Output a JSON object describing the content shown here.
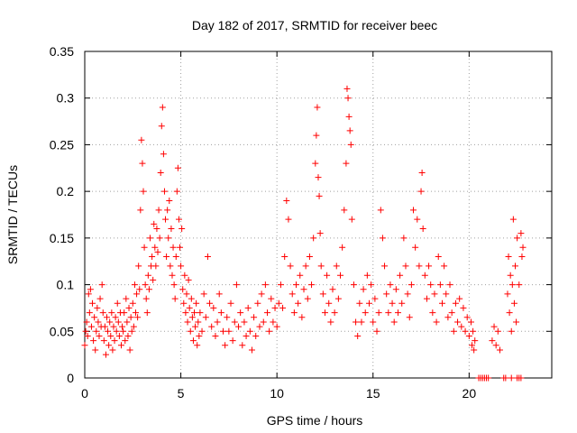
{
  "chart_data": {
    "type": "scatter",
    "title": "Day 182 of 2017, SRMTID for receiver beec",
    "xlabel": "GPS time / hours",
    "ylabel": "SRMTID / TECUs",
    "xlim": [
      0,
      24.3
    ],
    "ylim": [
      0,
      0.35
    ],
    "x_ticks": [
      0,
      5,
      10,
      15,
      20
    ],
    "x_tick_labels": [
      "0",
      "5",
      "10",
      "15",
      "20"
    ],
    "y_ticks": [
      0,
      0.05,
      0.1,
      0.15,
      0.2,
      0.25,
      0.3,
      0.35
    ],
    "y_tick_labels": [
      "0",
      "0.05",
      "0.1",
      "0.15",
      "0.2",
      "0.25",
      "0.3",
      "0.35"
    ],
    "grid": true,
    "marker": "+",
    "series": [
      {
        "name": "SRMTID",
        "color": "#ff0000",
        "points": [
          [
            0.0,
            0.035
          ],
          [
            0.05,
            0.05
          ],
          [
            0.1,
            0.06
          ],
          [
            0.15,
            0.045
          ],
          [
            0.2,
            0.09
          ],
          [
            0.25,
            0.07
          ],
          [
            0.3,
            0.095
          ],
          [
            0.35,
            0.055
          ],
          [
            0.4,
            0.08
          ],
          [
            0.45,
            0.04
          ],
          [
            0.5,
            0.065
          ],
          [
            0.55,
            0.03
          ],
          [
            0.6,
            0.05
          ],
          [
            0.65,
            0.075
          ],
          [
            0.7,
            0.06
          ],
          [
            0.75,
            0.045
          ],
          [
            0.8,
            0.085
          ],
          [
            0.85,
            0.055
          ],
          [
            0.9,
            0.1
          ],
          [
            0.95,
            0.07
          ],
          [
            1.0,
            0.04
          ],
          [
            1.05,
            0.055
          ],
          [
            1.1,
            0.025
          ],
          [
            1.15,
            0.065
          ],
          [
            1.2,
            0.05
          ],
          [
            1.25,
            0.035
          ],
          [
            1.3,
            0.06
          ],
          [
            1.35,
            0.045
          ],
          [
            1.4,
            0.07
          ],
          [
            1.45,
            0.03
          ],
          [
            1.5,
            0.055
          ],
          [
            1.55,
            0.04
          ],
          [
            1.6,
            0.065
          ],
          [
            1.65,
            0.05
          ],
          [
            1.7,
            0.08
          ],
          [
            1.75,
            0.06
          ],
          [
            1.8,
            0.045
          ],
          [
            1.85,
            0.07
          ],
          [
            1.9,
            0.035
          ],
          [
            1.95,
            0.055
          ],
          [
            2.0,
            0.05
          ],
          [
            2.05,
            0.07
          ],
          [
            2.1,
            0.04
          ],
          [
            2.15,
            0.085
          ],
          [
            2.2,
            0.06
          ],
          [
            2.25,
            0.045
          ],
          [
            2.3,
            0.075
          ],
          [
            2.35,
            0.03
          ],
          [
            2.4,
            0.065
          ],
          [
            2.45,
            0.05
          ],
          [
            2.5,
            0.08
          ],
          [
            2.55,
            0.055
          ],
          [
            2.6,
            0.1
          ],
          [
            2.65,
            0.07
          ],
          [
            2.7,
            0.09
          ],
          [
            2.75,
            0.065
          ],
          [
            2.8,
            0.12
          ],
          [
            2.85,
            0.095
          ],
          [
            2.9,
            0.18
          ],
          [
            2.95,
            0.255
          ],
          [
            3.0,
            0.23
          ],
          [
            3.05,
            0.2
          ],
          [
            3.1,
            0.14
          ],
          [
            3.15,
            0.1
          ],
          [
            3.2,
            0.085
          ],
          [
            3.25,
            0.07
          ],
          [
            3.3,
            0.11
          ],
          [
            3.35,
            0.095
          ],
          [
            3.4,
            0.15
          ],
          [
            3.45,
            0.12
          ],
          [
            3.5,
            0.13
          ],
          [
            3.55,
            0.105
          ],
          [
            3.6,
            0.165
          ],
          [
            3.65,
            0.14
          ],
          [
            3.7,
            0.12
          ],
          [
            3.75,
            0.16
          ],
          [
            3.8,
            0.135
          ],
          [
            3.85,
            0.18
          ],
          [
            3.9,
            0.15
          ],
          [
            3.95,
            0.22
          ],
          [
            4.0,
            0.27
          ],
          [
            4.05,
            0.29
          ],
          [
            4.1,
            0.24
          ],
          [
            4.15,
            0.2
          ],
          [
            4.2,
            0.17
          ],
          [
            4.25,
            0.13
          ],
          [
            4.3,
            0.18
          ],
          [
            4.35,
            0.15
          ],
          [
            4.4,
            0.19
          ],
          [
            4.45,
            0.12
          ],
          [
            4.5,
            0.16
          ],
          [
            4.55,
            0.11
          ],
          [
            4.6,
            0.14
          ],
          [
            4.65,
            0.1
          ],
          [
            4.7,
            0.085
          ],
          [
            4.75,
            0.13
          ],
          [
            4.8,
            0.2
          ],
          [
            4.85,
            0.225
          ],
          [
            4.9,
            0.17
          ],
          [
            4.95,
            0.14
          ],
          [
            5.0,
            0.12
          ],
          [
            5.05,
            0.16
          ],
          [
            5.1,
            0.095
          ],
          [
            5.15,
            0.08
          ],
          [
            5.2,
            0.11
          ],
          [
            5.25,
            0.07
          ],
          [
            5.3,
            0.09
          ],
          [
            5.35,
            0.06
          ],
          [
            5.4,
            0.105
          ],
          [
            5.45,
            0.075
          ],
          [
            5.5,
            0.05
          ],
          [
            5.55,
            0.085
          ],
          [
            5.6,
            0.065
          ],
          [
            5.65,
            0.04
          ],
          [
            5.7,
            0.07
          ],
          [
            5.75,
            0.055
          ],
          [
            5.8,
            0.08
          ],
          [
            5.85,
            0.035
          ],
          [
            5.9,
            0.06
          ],
          [
            5.95,
            0.045
          ],
          [
            6.0,
            0.07
          ],
          [
            6.1,
            0.05
          ],
          [
            6.2,
            0.09
          ],
          [
            6.3,
            0.065
          ],
          [
            6.4,
            0.13
          ],
          [
            6.5,
            0.08
          ],
          [
            6.6,
            0.055
          ],
          [
            6.7,
            0.075
          ],
          [
            6.8,
            0.045
          ],
          [
            6.9,
            0.06
          ],
          [
            7.0,
            0.09
          ],
          [
            7.1,
            0.07
          ],
          [
            7.2,
            0.05
          ],
          [
            7.3,
            0.035
          ],
          [
            7.4,
            0.065
          ],
          [
            7.5,
            0.05
          ],
          [
            7.6,
            0.08
          ],
          [
            7.7,
            0.04
          ],
          [
            7.8,
            0.06
          ],
          [
            7.9,
            0.1
          ],
          [
            8.0,
            0.055
          ],
          [
            8.1,
            0.07
          ],
          [
            8.2,
            0.035
          ],
          [
            8.3,
            0.06
          ],
          [
            8.4,
            0.045
          ],
          [
            8.5,
            0.075
          ],
          [
            8.6,
            0.05
          ],
          [
            8.7,
            0.03
          ],
          [
            8.8,
            0.065
          ],
          [
            8.9,
            0.045
          ],
          [
            9.0,
            0.08
          ],
          [
            9.1,
            0.055
          ],
          [
            9.2,
            0.09
          ],
          [
            9.3,
            0.06
          ],
          [
            9.4,
            0.1
          ],
          [
            9.5,
            0.07
          ],
          [
            9.6,
            0.05
          ],
          [
            9.7,
            0.085
          ],
          [
            9.8,
            0.06
          ],
          [
            9.9,
            0.075
          ],
          [
            10.0,
            0.055
          ],
          [
            10.1,
            0.08
          ],
          [
            10.2,
            0.1
          ],
          [
            10.3,
            0.075
          ],
          [
            10.4,
            0.13
          ],
          [
            10.5,
            0.19
          ],
          [
            10.6,
            0.17
          ],
          [
            10.7,
            0.12
          ],
          [
            10.8,
            0.09
          ],
          [
            10.9,
            0.07
          ],
          [
            11.0,
            0.1
          ],
          [
            11.1,
            0.08
          ],
          [
            11.2,
            0.11
          ],
          [
            11.3,
            0.065
          ],
          [
            11.4,
            0.095
          ],
          [
            11.5,
            0.12
          ],
          [
            11.6,
            0.085
          ],
          [
            11.7,
            0.13
          ],
          [
            11.8,
            0.1
          ],
          [
            11.9,
            0.15
          ],
          [
            12.0,
            0.23
          ],
          [
            12.05,
            0.26
          ],
          [
            12.1,
            0.29
          ],
          [
            12.15,
            0.215
          ],
          [
            12.2,
            0.195
          ],
          [
            12.25,
            0.155
          ],
          [
            12.3,
            0.12
          ],
          [
            12.4,
            0.09
          ],
          [
            12.5,
            0.07
          ],
          [
            12.6,
            0.11
          ],
          [
            12.7,
            0.08
          ],
          [
            12.8,
            0.06
          ],
          [
            12.9,
            0.095
          ],
          [
            13.0,
            0.07
          ],
          [
            13.1,
            0.12
          ],
          [
            13.2,
            0.085
          ],
          [
            13.3,
            0.11
          ],
          [
            13.4,
            0.14
          ],
          [
            13.5,
            0.18
          ],
          [
            13.6,
            0.23
          ],
          [
            13.65,
            0.31
          ],
          [
            13.7,
            0.3
          ],
          [
            13.75,
            0.28
          ],
          [
            13.8,
            0.265
          ],
          [
            13.85,
            0.25
          ],
          [
            13.9,
            0.17
          ],
          [
            14.0,
            0.1
          ],
          [
            14.1,
            0.06
          ],
          [
            14.2,
            0.045
          ],
          [
            14.3,
            0.08
          ],
          [
            14.4,
            0.06
          ],
          [
            14.5,
            0.095
          ],
          [
            14.6,
            0.07
          ],
          [
            14.7,
            0.11
          ],
          [
            14.8,
            0.08
          ],
          [
            14.9,
            0.1
          ],
          [
            15.0,
            0.06
          ],
          [
            15.1,
            0.085
          ],
          [
            15.2,
            0.05
          ],
          [
            15.3,
            0.07
          ],
          [
            15.4,
            0.18
          ],
          [
            15.5,
            0.15
          ],
          [
            15.6,
            0.12
          ],
          [
            15.7,
            0.09
          ],
          [
            15.8,
            0.07
          ],
          [
            15.9,
            0.1
          ],
          [
            16.0,
            0.08
          ],
          [
            16.1,
            0.06
          ],
          [
            16.2,
            0.095
          ],
          [
            16.3,
            0.07
          ],
          [
            16.4,
            0.11
          ],
          [
            16.5,
            0.08
          ],
          [
            16.6,
            0.15
          ],
          [
            16.7,
            0.12
          ],
          [
            16.8,
            0.09
          ],
          [
            16.9,
            0.065
          ],
          [
            17.0,
            0.1
          ],
          [
            17.1,
            0.18
          ],
          [
            17.2,
            0.14
          ],
          [
            17.3,
            0.17
          ],
          [
            17.4,
            0.12
          ],
          [
            17.5,
            0.2
          ],
          [
            17.55,
            0.22
          ],
          [
            17.6,
            0.16
          ],
          [
            17.7,
            0.11
          ],
          [
            17.8,
            0.085
          ],
          [
            17.9,
            0.12
          ],
          [
            18.0,
            0.1
          ],
          [
            18.1,
            0.07
          ],
          [
            18.2,
            0.09
          ],
          [
            18.3,
            0.06
          ],
          [
            18.4,
            0.13
          ],
          [
            18.5,
            0.1
          ],
          [
            18.6,
            0.08
          ],
          [
            18.7,
            0.12
          ],
          [
            18.8,
            0.09
          ],
          [
            18.9,
            0.065
          ],
          [
            19.0,
            0.1
          ],
          [
            19.1,
            0.07
          ],
          [
            19.2,
            0.05
          ],
          [
            19.3,
            0.08
          ],
          [
            19.4,
            0.06
          ],
          [
            19.5,
            0.085
          ],
          [
            19.6,
            0.055
          ],
          [
            19.7,
            0.075
          ],
          [
            19.8,
            0.05
          ],
          [
            19.9,
            0.065
          ],
          [
            20.0,
            0.045
          ],
          [
            20.1,
            0.06
          ],
          [
            20.15,
            0.035
          ],
          [
            20.2,
            0.05
          ],
          [
            20.25,
            0.03
          ],
          [
            20.3,
            0.04
          ],
          [
            20.5,
            0.0
          ],
          [
            20.6,
            0.0
          ],
          [
            20.7,
            0.0
          ],
          [
            20.8,
            0.0
          ],
          [
            20.9,
            0.0
          ],
          [
            21.0,
            0.0
          ],
          [
            21.2,
            0.04
          ],
          [
            21.3,
            0.055
          ],
          [
            21.4,
            0.035
          ],
          [
            21.5,
            0.05
          ],
          [
            21.6,
            0.03
          ],
          [
            21.8,
            0.0
          ],
          [
            21.9,
            0.0
          ],
          [
            22.2,
            0.0
          ],
          [
            22.5,
            0.0
          ],
          [
            22.6,
            0.0
          ],
          [
            22.7,
            0.0
          ],
          [
            22.0,
            0.09
          ],
          [
            22.05,
            0.13
          ],
          [
            22.1,
            0.07
          ],
          [
            22.15,
            0.11
          ],
          [
            22.2,
            0.05
          ],
          [
            22.25,
            0.1
          ],
          [
            22.3,
            0.17
          ],
          [
            22.35,
            0.08
          ],
          [
            22.4,
            0.12
          ],
          [
            22.45,
            0.06
          ],
          [
            22.5,
            0.15
          ],
          [
            22.6,
            0.1
          ],
          [
            22.7,
            0.155
          ],
          [
            22.75,
            0.13
          ],
          [
            22.8,
            0.14
          ]
        ]
      }
    ]
  }
}
